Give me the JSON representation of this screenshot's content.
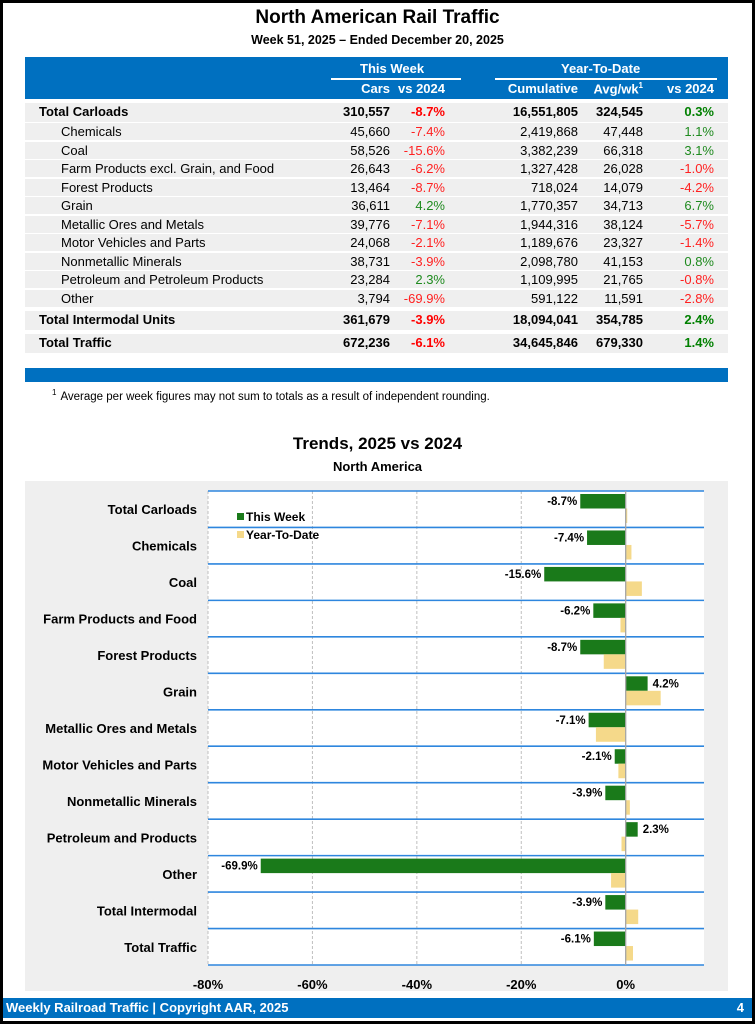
{
  "header": {
    "title": "North American Rail Traffic",
    "subtitle": "Week 51, 2025 – Ended December 20, 2025"
  },
  "table": {
    "group_headers": {
      "this_week": "This Week",
      "ytd": "Year-To-Date"
    },
    "columns": {
      "cars": "Cars",
      "vs1": "vs 2024",
      "cumulative": "Cumulative",
      "avg": "Avg/wk",
      "avg_sup": "1",
      "vs2": "vs 2024"
    },
    "rows": [
      {
        "label": "Total Carloads",
        "cars": "310,557",
        "vs": "-8.7%",
        "cum": "16,551,805",
        "avg": "324,545",
        "ytd": "0.3%",
        "type": "total"
      },
      {
        "label": "Chemicals",
        "cars": "45,660",
        "vs": "-7.4%",
        "cum": "2,419,868",
        "avg": "47,448",
        "ytd": "1.1%",
        "type": "sub"
      },
      {
        "label": "Coal",
        "cars": "58,526",
        "vs": "-15.6%",
        "cum": "3,382,239",
        "avg": "66,318",
        "ytd": "3.1%",
        "type": "sub"
      },
      {
        "label": "Farm Products excl. Grain, and Food",
        "cars": "26,643",
        "vs": "-6.2%",
        "cum": "1,327,428",
        "avg": "26,028",
        "ytd": "-1.0%",
        "type": "sub"
      },
      {
        "label": "Forest Products",
        "cars": "13,464",
        "vs": "-8.7%",
        "cum": "718,024",
        "avg": "14,079",
        "ytd": "-4.2%",
        "type": "sub"
      },
      {
        "label": "Grain",
        "cars": "36,611",
        "vs": "4.2%",
        "cum": "1,770,357",
        "avg": "34,713",
        "ytd": "6.7%",
        "type": "sub"
      },
      {
        "label": "Metallic Ores and Metals",
        "cars": "39,776",
        "vs": "-7.1%",
        "cum": "1,944,316",
        "avg": "38,124",
        "ytd": "-5.7%",
        "type": "sub"
      },
      {
        "label": "Motor Vehicles and Parts",
        "cars": "24,068",
        "vs": "-2.1%",
        "cum": "1,189,676",
        "avg": "23,327",
        "ytd": "-1.4%",
        "type": "sub"
      },
      {
        "label": "Nonmetallic Minerals",
        "cars": "38,731",
        "vs": "-3.9%",
        "cum": "2,098,780",
        "avg": "41,153",
        "ytd": "0.8%",
        "type": "sub"
      },
      {
        "label": "Petroleum and Petroleum Products",
        "cars": "23,284",
        "vs": "2.3%",
        "cum": "1,109,995",
        "avg": "21,765",
        "ytd": "-0.8%",
        "type": "sub"
      },
      {
        "label": "Other",
        "cars": "3,794",
        "vs": "-69.9%",
        "cum": "591,122",
        "avg": "11,591",
        "ytd": "-2.8%",
        "type": "sub"
      },
      {
        "label": "Total Intermodal Units",
        "cars": "361,679",
        "vs": "-3.9%",
        "cum": "18,094,041",
        "avg": "354,785",
        "ytd": "2.4%",
        "type": "total"
      },
      {
        "label": "Total Traffic",
        "cars": "672,236",
        "vs": "-6.1%",
        "cum": "34,645,846",
        "avg": "679,330",
        "ytd": "1.4%",
        "type": "total"
      }
    ],
    "footnote_mark": "1",
    "footnote": "Average per week figures may not sum to totals as a result of independent rounding."
  },
  "colors": {
    "brand_blue": "#0070C0",
    "negative": "#FF0000",
    "positive": "#008000",
    "this_week_bar": "#1A7A1A",
    "ytd_bar": "#F5D98A",
    "panel_bg": "#EFEFEF"
  },
  "chart_data": {
    "type": "bar",
    "orientation": "horizontal",
    "title": "Trends, 2025 vs 2024",
    "subtitle": "North America",
    "xlabel": "",
    "ylabel": "",
    "xlim": [
      -80,
      15
    ],
    "x_ticks": [
      -80,
      -60,
      -40,
      -20,
      0
    ],
    "x_tick_labels": [
      "-80%",
      "-60%",
      "-40%",
      "-20%",
      "0%"
    ],
    "grid": true,
    "legend_position": "top-left",
    "categories": [
      "Total Carloads",
      "Chemicals",
      "Coal",
      "Farm Products and Food",
      "Forest Products",
      "Grain",
      "Metallic Ores and Metals",
      "Motor Vehicles and Parts",
      "Nonmetallic Minerals",
      "Petroleum and Products",
      "Other",
      "Total Intermodal",
      "Total Traffic"
    ],
    "series": [
      {
        "name": "This Week",
        "values": [
          -8.7,
          -7.4,
          -15.6,
          -6.2,
          -8.7,
          4.2,
          -7.1,
          -2.1,
          -3.9,
          2.3,
          -69.9,
          -3.9,
          -6.1
        ],
        "labels": [
          "-8.7%",
          "-7.4%",
          "-15.6%",
          "-6.2%",
          "-8.7%",
          "4.2%",
          "-7.1%",
          "-2.1%",
          "-3.9%",
          "2.3%",
          "-69.9%",
          "-3.9%",
          "-6.1%"
        ]
      },
      {
        "name": "Year-To-Date",
        "values": [
          0.3,
          1.1,
          3.1,
          -1.0,
          -4.2,
          6.7,
          -5.7,
          -1.4,
          0.8,
          -0.8,
          -2.8,
          2.4,
          1.4
        ]
      }
    ]
  },
  "footer": {
    "left": "Weekly Railroad Traffic | Copyright AAR, 2025",
    "page_number": "4"
  }
}
